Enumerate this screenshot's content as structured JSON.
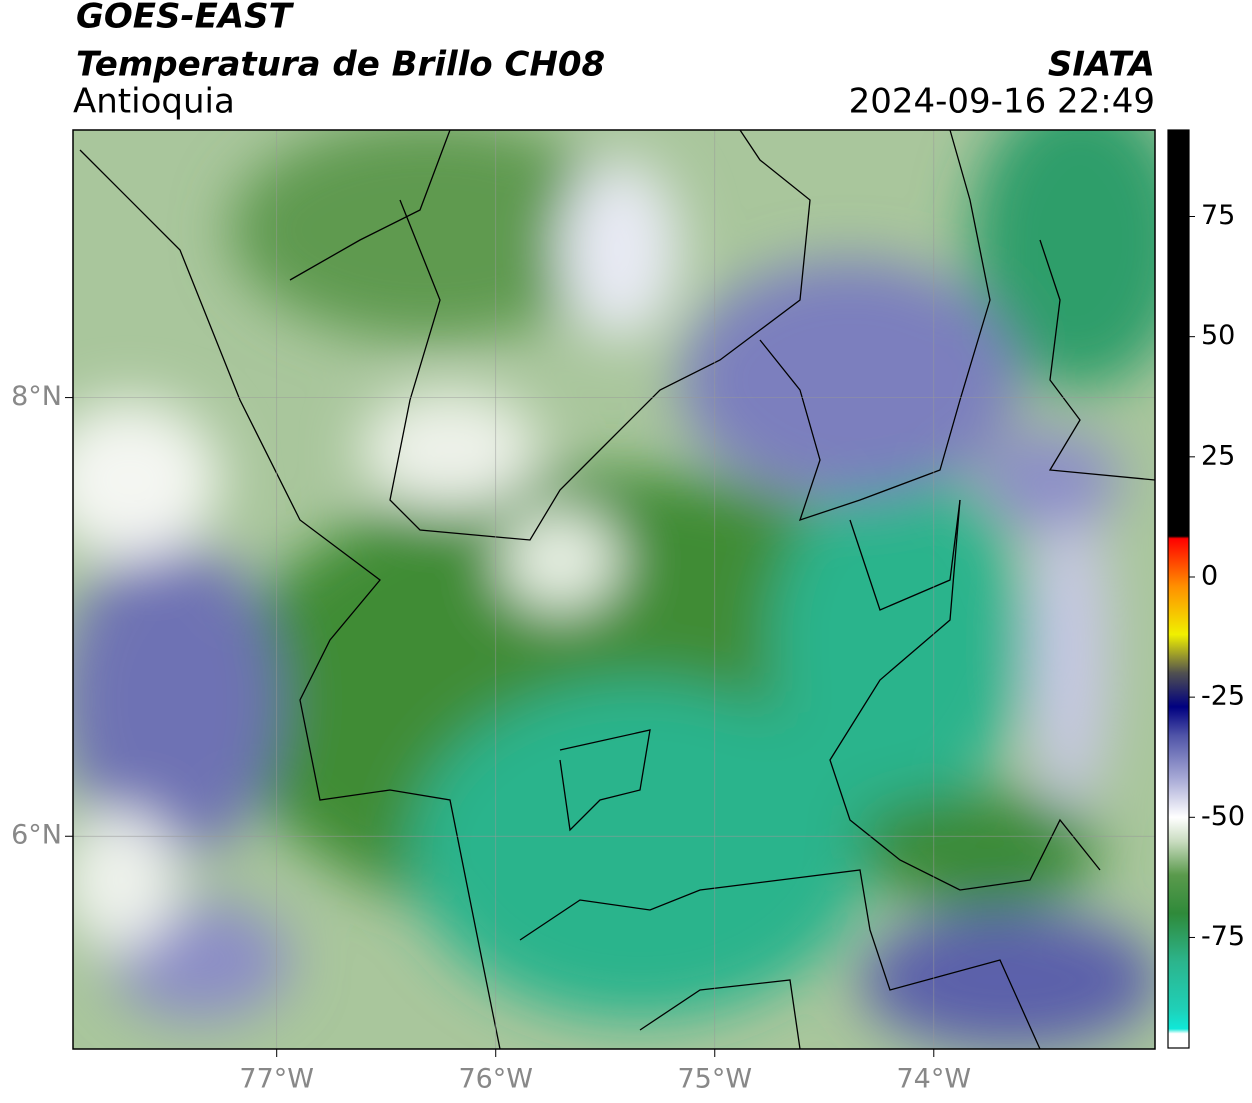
{
  "header": {
    "title": "GOES-EAST",
    "subtitle": "Temperatura de Brillo CH08",
    "region": "Antioquia",
    "source": "SIATA",
    "datetime": "2024-09-16 22:49"
  },
  "map": {
    "lonlim": [
      -77.93,
      -72.99
    ],
    "latlim": [
      5.03,
      9.22
    ],
    "lon_ticks": [
      {
        "value": -77,
        "label": "77°W"
      },
      {
        "value": -76,
        "label": "76°W"
      },
      {
        "value": -75,
        "label": "75°W"
      },
      {
        "value": -74,
        "label": "74°W"
      }
    ],
    "lat_ticks": [
      {
        "value": 8,
        "label": "8°N"
      },
      {
        "value": 6,
        "label": "6°N"
      }
    ],
    "grid": true
  },
  "colorbar": {
    "lim": [
      -98,
      93
    ],
    "ticks": [
      75,
      50,
      25,
      0,
      -25,
      -50,
      -75
    ],
    "stops": [
      {
        "value": -98,
        "color": "#ffffff"
      },
      {
        "value": -95,
        "color": "#ffffff"
      },
      {
        "value": -94,
        "color": "#10e8d8"
      },
      {
        "value": -90,
        "color": "#1fd0b8"
      },
      {
        "value": -80,
        "color": "#2cb48c"
      },
      {
        "value": -70,
        "color": "#2f8a3a"
      },
      {
        "value": -62,
        "color": "#5a9a4c"
      },
      {
        "value": -55,
        "color": "#c9dcc0"
      },
      {
        "value": -50,
        "color": "#ffffff"
      },
      {
        "value": -42,
        "color": "#a8aad6"
      },
      {
        "value": -33,
        "color": "#5054a8"
      },
      {
        "value": -27,
        "color": "#000080"
      },
      {
        "value": -20,
        "color": "#505050"
      },
      {
        "value": -12,
        "color": "#f0f000"
      },
      {
        "value": -2,
        "color": "#ff9000"
      },
      {
        "value": 8,
        "color": "#ff0000"
      },
      {
        "value": 8.5,
        "color": "#000000"
      },
      {
        "value": 93,
        "color": "#000000"
      }
    ]
  }
}
